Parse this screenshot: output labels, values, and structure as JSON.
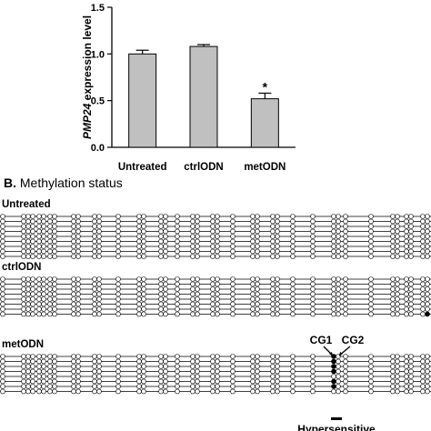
{
  "chart_data": {
    "type": "bar",
    "categories": [
      "Untreated",
      "ctrlODN",
      "metODN"
    ],
    "values": [
      1.0,
      1.08,
      0.52
    ],
    "errors": [
      0.04,
      0.02,
      0.06
    ],
    "significance": [
      "",
      "",
      "*"
    ],
    "ylabel_gene": "PMP24",
    "ylabel_rest": " expression level",
    "ylim": [
      0,
      1.5
    ],
    "yticks": [
      0.0,
      0.5,
      1.0,
      1.5
    ],
    "ytick_labels": [
      "0.0",
      "0.5",
      "1.0",
      "1.5"
    ],
    "bar_color": "#c0c0c0",
    "grid": false
  },
  "methylation": {
    "panel_letter": "B.",
    "panel_title": " Methylation status",
    "groups": [
      {
        "label": "Untreated",
        "rows": 9,
        "methylated": []
      },
      {
        "label": "ctrlODN",
        "rows": 8,
        "methylated": [
          [
            7,
            "last"
          ]
        ]
      },
      {
        "label": "metODN",
        "rows": 8,
        "methylated": [
          [
            0,
            "cg1"
          ],
          [
            1,
            "cg1"
          ],
          [
            2,
            "cg1"
          ],
          [
            3,
            "cg1"
          ],
          [
            5,
            "cg1"
          ],
          [
            6,
            "cg1"
          ]
        ]
      }
    ],
    "cg1_label": "CG1",
    "cg2_label": "CG2",
    "hypersensitive_label": "Hypersensitive",
    "colors": {
      "unmethylated": "#ffffff",
      "methylated": "#000000"
    }
  }
}
